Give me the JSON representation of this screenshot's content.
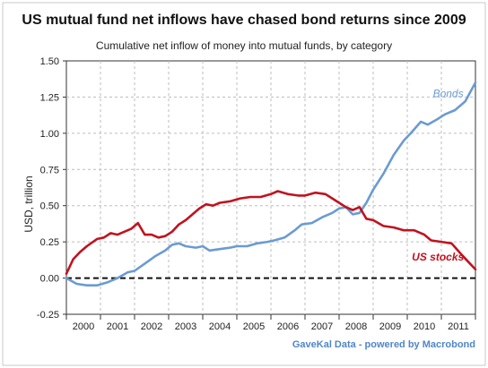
{
  "chart_data": {
    "type": "line",
    "title": "US mutual fund net inflows have chased bond returns since 2009",
    "subtitle": "Cumulative net inflow of money into mutual funds, by category",
    "ylabel": "USD, trillion",
    "xlabel": "",
    "source": "GaveKal Data - powered by Macrobond",
    "ylim": [
      -0.25,
      1.5
    ],
    "xlim": [
      2000.0,
      2012.0
    ],
    "y_ticks": [
      "1.50",
      "1.25",
      "1.00",
      "0.75",
      "0.50",
      "0.25",
      "0.00",
      "-0.25"
    ],
    "y_tick_values": [
      1.5,
      1.25,
      1.0,
      0.75,
      0.5,
      0.25,
      0.0,
      -0.25
    ],
    "x_tick_labels": [
      "2000",
      "2001",
      "2002",
      "2003",
      "2004",
      "2005",
      "2006",
      "2007",
      "2008",
      "2009",
      "2010",
      "2011"
    ],
    "x_tick_centers": [
      2000.5,
      2001.5,
      2002.5,
      2003.5,
      2004.5,
      2005.5,
      2006.5,
      2007.5,
      2008.5,
      2009.5,
      2010.5,
      2011.5
    ],
    "grid": true,
    "zero_line": "dashed",
    "series": [
      {
        "name": "Bonds",
        "color": "#6b9bd1",
        "x": [
          2000.0,
          2000.3,
          2000.6,
          2000.9,
          2001.2,
          2001.5,
          2001.8,
          2002.0,
          2002.3,
          2002.6,
          2002.9,
          2003.1,
          2003.3,
          2003.5,
          2003.8,
          2004.0,
          2004.2,
          2004.5,
          2004.8,
          2005.0,
          2005.3,
          2005.6,
          2005.9,
          2006.1,
          2006.4,
          2006.7,
          2006.9,
          2007.2,
          2007.5,
          2007.8,
          2008.0,
          2008.2,
          2008.4,
          2008.6,
          2008.8,
          2009.0,
          2009.3,
          2009.6,
          2009.9,
          2010.1,
          2010.4,
          2010.6,
          2010.9,
          2011.1,
          2011.4,
          2011.7,
          2012.0
        ],
        "values": [
          0.0,
          -0.04,
          -0.05,
          -0.05,
          -0.03,
          0.0,
          0.04,
          0.05,
          0.1,
          0.15,
          0.19,
          0.23,
          0.24,
          0.22,
          0.21,
          0.22,
          0.19,
          0.2,
          0.21,
          0.22,
          0.22,
          0.24,
          0.25,
          0.26,
          0.28,
          0.33,
          0.37,
          0.38,
          0.42,
          0.45,
          0.48,
          0.49,
          0.44,
          0.45,
          0.52,
          0.61,
          0.72,
          0.85,
          0.95,
          1.0,
          1.08,
          1.06,
          1.1,
          1.13,
          1.16,
          1.22,
          1.35
        ]
      },
      {
        "name": "US stocks",
        "color": "#c0131f",
        "x": [
          2000.0,
          2000.2,
          2000.4,
          2000.6,
          2000.9,
          2001.1,
          2001.3,
          2001.5,
          2001.7,
          2001.9,
          2002.1,
          2002.3,
          2002.5,
          2002.7,
          2002.9,
          2003.1,
          2003.3,
          2003.5,
          2003.7,
          2003.9,
          2004.1,
          2004.3,
          2004.5,
          2004.8,
          2005.1,
          2005.4,
          2005.7,
          2006.0,
          2006.2,
          2006.5,
          2006.8,
          2007.0,
          2007.3,
          2007.6,
          2007.8,
          2008.0,
          2008.2,
          2008.4,
          2008.6,
          2008.8,
          2009.0,
          2009.3,
          2009.6,
          2009.9,
          2010.2,
          2010.5,
          2010.7,
          2011.0,
          2011.3,
          2011.6,
          2011.8,
          2012.0
        ],
        "values": [
          0.03,
          0.13,
          0.18,
          0.22,
          0.27,
          0.28,
          0.31,
          0.3,
          0.32,
          0.34,
          0.38,
          0.3,
          0.3,
          0.28,
          0.29,
          0.32,
          0.37,
          0.4,
          0.44,
          0.48,
          0.51,
          0.5,
          0.52,
          0.53,
          0.55,
          0.56,
          0.56,
          0.58,
          0.6,
          0.58,
          0.57,
          0.57,
          0.59,
          0.58,
          0.55,
          0.52,
          0.49,
          0.47,
          0.49,
          0.41,
          0.4,
          0.36,
          0.35,
          0.33,
          0.33,
          0.3,
          0.26,
          0.25,
          0.24,
          0.16,
          0.11,
          0.06
        ]
      }
    ],
    "annotations": [
      {
        "text": "Bonds",
        "series": "Bonds",
        "x": 2011.2,
        "y": 1.25
      },
      {
        "text": "US stocks",
        "series": "US stocks",
        "x": 2010.9,
        "y": 0.12
      }
    ]
  }
}
